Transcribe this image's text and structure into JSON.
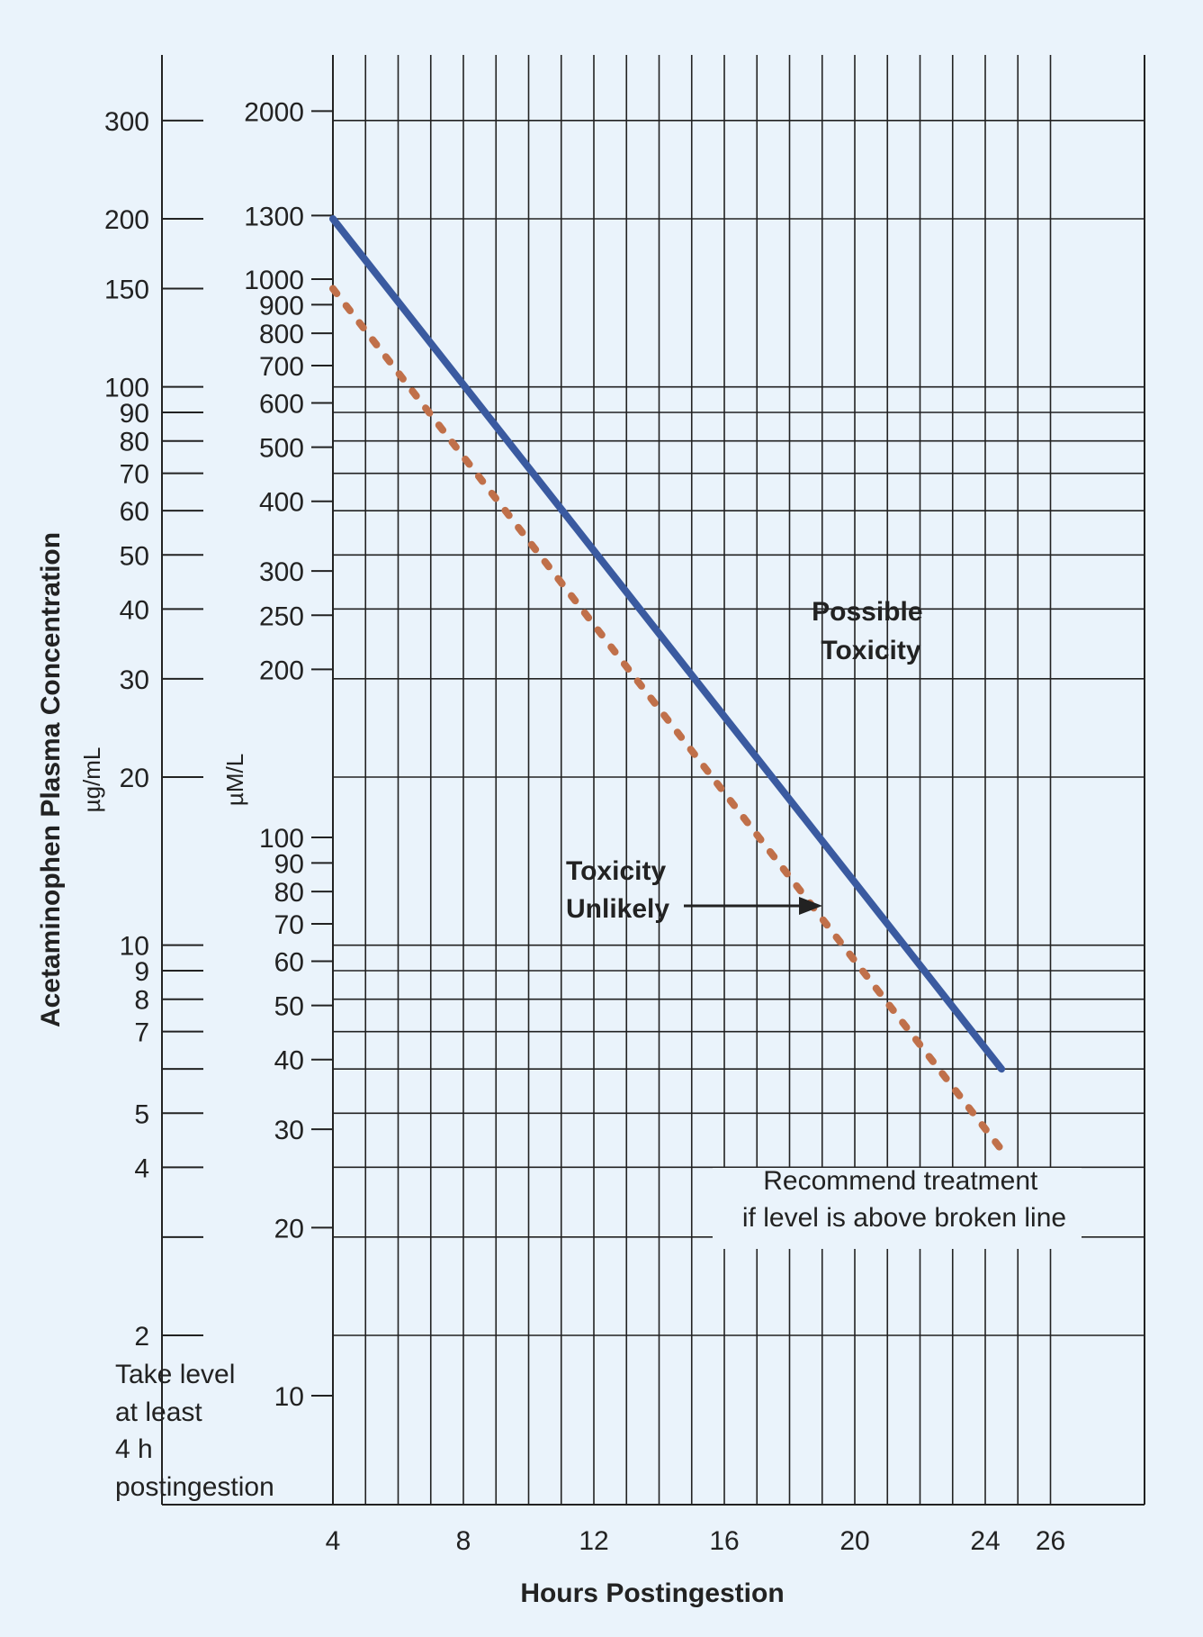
{
  "chart_data": {
    "type": "line",
    "title": "",
    "xlabel": "Hours Postingestion",
    "ylabel": "Acetaminophen Plasma Concentration",
    "ylabel_left_unit": "µg/mL",
    "ylabel_right_unit": "µM/L",
    "y_scale": "log",
    "xlim": [
      4,
      26
    ],
    "ylim": [
      1.5,
      400
    ],
    "x_ticks": [
      4,
      8,
      12,
      16,
      20,
      24,
      26
    ],
    "y_ticks_ugml": [
      300,
      200,
      150,
      100,
      90,
      80,
      70,
      60,
      50,
      40,
      30,
      20,
      10,
      9,
      8,
      7,
      5,
      4,
      2
    ],
    "y_ticks_umol": [
      2000,
      1300,
      1000,
      900,
      800,
      700,
      600,
      500,
      400,
      300,
      250,
      200,
      100,
      90,
      80,
      70,
      60,
      50,
      40,
      30,
      20,
      10
    ],
    "series": [
      {
        "name": "",
        "style": "solid",
        "color": "#3a5aa0",
        "x": [
          4,
          24.5
        ],
        "y": [
          200,
          6
        ]
      },
      {
        "name": "",
        "style": "dotted",
        "color": "#c0704a",
        "x": [
          4,
          24.5
        ],
        "y": [
          150,
          4.3
        ]
      }
    ],
    "annotations": {
      "possible_toxicity": [
        "Possible",
        "Toxicity"
      ],
      "toxicity_unlikely": [
        "Toxicity",
        "Unlikely"
      ],
      "treatment_note": [
        "Recommend treatment",
        "if level is above broken line"
      ],
      "take_level_note": [
        "Take level",
        "at least",
        "4 h",
        "postingestion"
      ]
    },
    "grid": true,
    "legend": "none"
  }
}
